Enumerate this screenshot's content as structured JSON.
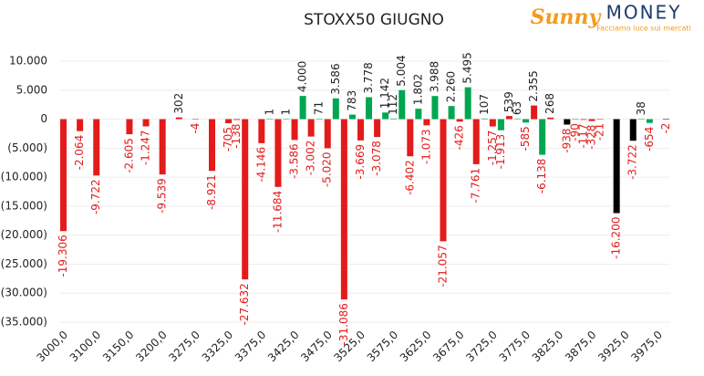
{
  "logo": {
    "brand": "Sunny",
    "brand2": "MONEY",
    "tagline": "Facciamo luce sui mercati"
  },
  "chart_data": {
    "type": "bar",
    "title": "STOXX50 GIUGNO",
    "categories": [
      "3000,0",
      null,
      null,
      null,
      "3100,0",
      null,
      null,
      null,
      "3150,0",
      null,
      null,
      null,
      "3200,0",
      null,
      null,
      null,
      "3275,0",
      null,
      null,
      null,
      "3325,0",
      null,
      null,
      null,
      "3375,0",
      null,
      null,
      null,
      "3425,0",
      null,
      null,
      null,
      "3475,0",
      null,
      null,
      null,
      "3525,0",
      null,
      null,
      null,
      "3575,0",
      null,
      null,
      null,
      "3625,0",
      null,
      null,
      null,
      "3675,0",
      null,
      null,
      null,
      "3725,0",
      null,
      null,
      null,
      "3775,0",
      null,
      null,
      null,
      "3825,0",
      null,
      null,
      null,
      "3875,0",
      null,
      null,
      null,
      "3925,0",
      null,
      null,
      null,
      "3975,0",
      null
    ],
    "values": [
      -19306,
      null,
      -2064,
      null,
      -9722,
      null,
      null,
      null,
      -2605,
      null,
      -1247,
      null,
      -9539,
      null,
      302,
      null,
      -4,
      null,
      -8921,
      null,
      -705,
      -138,
      -27632,
      null,
      -4146,
      1,
      -11684,
      1,
      -3586,
      4000,
      -3002,
      71,
      -5020,
      3586,
      -31086,
      783,
      -3669,
      3778,
      -3078,
      1142,
      112,
      5004,
      -6402,
      1802,
      -1073,
      3988,
      -21057,
      2260,
      -426,
      5495,
      -7761,
      107,
      -1257,
      -1913,
      539,
      63,
      -585,
      2355,
      -6138,
      268,
      null,
      -938,
      -90,
      -117,
      -328,
      -21,
      null,
      -16200,
      null,
      -3722,
      38,
      -654,
      null,
      -2
    ],
    "value_labels": [
      "-19.306",
      null,
      "-2.064",
      null,
      "-9.722",
      null,
      null,
      null,
      "-2.605",
      null,
      "-1.247",
      null,
      "-9.539",
      null,
      "302",
      null,
      "-4",
      null,
      "-8.921",
      null,
      "-705",
      "-138",
      "-27.632",
      null,
      "-4.146",
      "1",
      "-11.684",
      "1",
      "-3.586",
      "4.000",
      "-3.002",
      "71",
      "-5.020",
      "3.586",
      "-31.086",
      "783",
      "-3.669",
      "3.778",
      "-3.078",
      "1.142",
      "112",
      "5.004",
      "-6.402",
      "1.802",
      "-1.073",
      "3.988",
      "-21.057",
      "2.260",
      "-426",
      "5.495",
      "-7.761",
      "107",
      "-1.257",
      "-1.913",
      "539",
      "63",
      "-585",
      "2.355",
      "-6.138",
      "268",
      null,
      "-938",
      "-90",
      "-117",
      "-328",
      "-21",
      null,
      "-16.200",
      null,
      "-3.722",
      "38",
      "-654",
      null,
      "-2"
    ],
    "colors": [
      "#e31b1b",
      null,
      "#e31b1b",
      null,
      "#e31b1b",
      null,
      null,
      null,
      "#e31b1b",
      null,
      "#e31b1b",
      null,
      "#e31b1b",
      null,
      "#e31b1b",
      null,
      "#e31b1b",
      null,
      "#e31b1b",
      null,
      "#e31b1b",
      "#e31b1b",
      "#e31b1b",
      null,
      "#e31b1b",
      "#00a650",
      "#e31b1b",
      "#00a650",
      "#e31b1b",
      "#00a650",
      "#e31b1b",
      "#00a650",
      "#e31b1b",
      "#00a650",
      "#e31b1b",
      "#00a650",
      "#e31b1b",
      "#00a650",
      "#e31b1b",
      "#00a650",
      "#00a650",
      "#00a650",
      "#e31b1b",
      "#00a650",
      "#e31b1b",
      "#00a650",
      "#e31b1b",
      "#00a650",
      "#e31b1b",
      "#00a650",
      "#e31b1b",
      "#00a650",
      "#e31b1b",
      "#00a650",
      "#e31b1b",
      "#00a650",
      "#00a650",
      "#e31b1b",
      "#00a650",
      "#e31b1b",
      "#00a650",
      null,
      "#00a650",
      "#e31b1b",
      "#e31b1b",
      "#e31b1b",
      "#e31b1b",
      null,
      "#00a650",
      null,
      "#00a650",
      "#00a650",
      "#00a650",
      null,
      "#e31b1b"
    ],
    "ylim": [
      -35000,
      10000
    ],
    "yticks": [
      {
        "value": 10000,
        "label": "10.000"
      },
      {
        "value": 5000,
        "label": "5.000"
      },
      0,
      {
        "value": -5000,
        "label": "(5.000)"
      },
      {
        "value": -10000,
        "label": "(10.000)"
      },
      {
        "value": -15000,
        "label": "(15.000)"
      },
      {
        "value": -20000,
        "label": "(20.000)"
      },
      {
        "value": -25000,
        "label": "(25.000)"
      },
      {
        "value": -30000,
        "label": "(30.000)"
      },
      {
        "value": -35000,
        "label": "(35.000)"
      }
    ],
    "grid": true
  }
}
